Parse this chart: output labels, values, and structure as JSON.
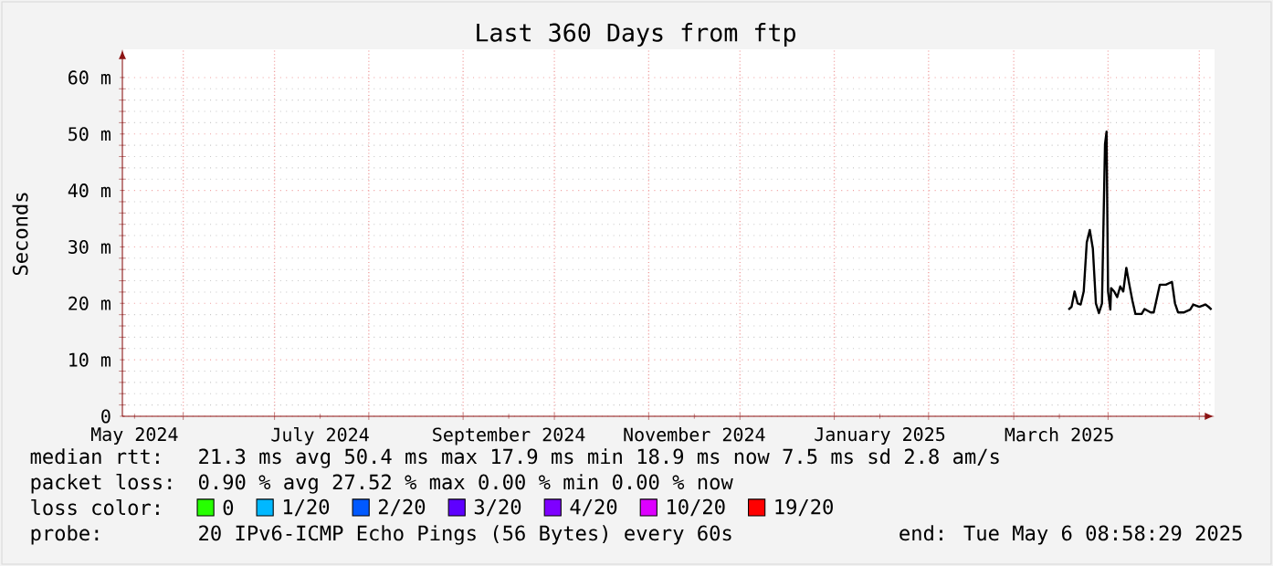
{
  "chart_data": {
    "type": "line",
    "title": "Last 360 Days from ftp",
    "ylabel": "Seconds",
    "xlim": [
      "2024-05-12",
      "2025-05-06"
    ],
    "xticks": [
      {
        "value": "2024-05-16",
        "label": "May 2024"
      },
      {
        "value": "2024-07-16",
        "label": "July 2024"
      },
      {
        "value": "2024-09-16",
        "label": "September 2024"
      },
      {
        "value": "2024-11-16",
        "label": "November 2024"
      },
      {
        "value": "2025-01-16",
        "label": "January 2025"
      },
      {
        "value": "2025-03-16",
        "label": "March 2025"
      },
      {
        "value": "2024-06-01",
        "label": null
      },
      {
        "value": "2024-07-01",
        "label": null
      },
      {
        "value": "2024-08-01",
        "label": null
      },
      {
        "value": "2024-09-01",
        "label": null
      },
      {
        "value": "2024-10-01",
        "label": null
      },
      {
        "value": "2024-11-01",
        "label": null
      },
      {
        "value": "2024-12-01",
        "label": null
      },
      {
        "value": "2025-01-01",
        "label": null
      },
      {
        "value": "2025-02-01",
        "label": null
      },
      {
        "value": "2025-03-01",
        "label": null
      },
      {
        "value": "2025-04-01",
        "label": null
      },
      {
        "value": "2025-05-01",
        "label": null
      }
    ],
    "ylim": [
      0,
      65
    ],
    "yticks": [
      0,
      {
        "value": 10,
        "label": "10 m"
      },
      {
        "value": 20,
        "label": "20 m"
      },
      {
        "value": 30,
        "label": "30 m"
      },
      {
        "value": 40,
        "label": "40 m"
      },
      {
        "value": 50,
        "label": "50 m"
      },
      {
        "value": 60,
        "label": "60 m"
      }
    ],
    "grid": true,
    "marker": "none",
    "line_style": "solid",
    "legend": "bottom",
    "legend_title": "loss color:",
    "series": [
      {
        "color": "#000000",
        "x": [
          "2025-03-19",
          "2025-03-20",
          "2025-03-21",
          "2025-03-22",
          "2025-03-23",
          "2025-03-24",
          "2025-03-25",
          "2025-03-26",
          "2025-03-27",
          "2025-03-28",
          "2025-03-29",
          "2025-03-30",
          "2025-03-31",
          "2025-03-31T12:00",
          "2025-04-01",
          "2025-04-01T18:00",
          "2025-04-02",
          "2025-04-03",
          "2025-04-04",
          "2025-04-05",
          "2025-04-06",
          "2025-04-07",
          "2025-04-08",
          "2025-04-09",
          "2025-04-10",
          "2025-04-12",
          "2025-04-13",
          "2025-04-15",
          "2025-04-16",
          "2025-04-17",
          "2025-04-18",
          "2025-04-20",
          "2025-04-22",
          "2025-04-23",
          "2025-04-24",
          "2025-04-26",
          "2025-04-28",
          "2025-04-29",
          "2025-05-01",
          "2025-05-03",
          "2025-05-04",
          "2025-05-05"
        ],
        "values": [
          18.9,
          19.4,
          22.1,
          20.0,
          19.8,
          22.1,
          30.8,
          33.0,
          29.7,
          20.0,
          18.3,
          20.0,
          48.2,
          50.4,
          22.1,
          18.9,
          22.7,
          22.1,
          21.1,
          23.0,
          22.1,
          26.3,
          23.3,
          20.5,
          18.1,
          18.1,
          19.0,
          18.4,
          18.4,
          20.8,
          23.3,
          23.3,
          23.8,
          20.0,
          18.4,
          18.4,
          18.9,
          19.8,
          19.4,
          19.8,
          19.4,
          18.9
        ]
      },
      {
        "name": "0",
        "color": "#26ff00"
      },
      {
        "name": "1/20",
        "color": "#00b8ff"
      },
      {
        "name": "2/20",
        "color": "#0059ff"
      },
      {
        "name": "3/20",
        "color": "#5e00ff"
      },
      {
        "name": "4/20",
        "color": "#7e00ff"
      },
      {
        "name": "10/20",
        "color": "#dd00ff"
      },
      {
        "name": "19/20",
        "color": "#ff0000"
      }
    ],
    "annotations": [
      "median rtt:",
      "21.3 ms avg  50.4 ms max  17.9 ms min  18.9 ms now  7.5 ms sd  2.8   am/s",
      "packet loss:",
      "0.90 % avg  27.52 % max  0.00 % min  0.00 % now",
      "probe:",
      "20 IPv6-ICMP Echo Pings (56 Bytes) every 60s",
      "end: Tue May  6 08:58:29 2025"
    ]
  }
}
